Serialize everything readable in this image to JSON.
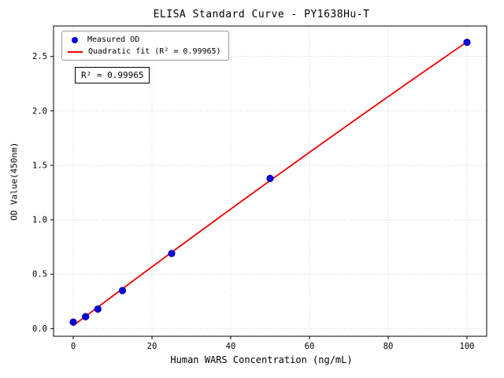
{
  "chart_data": {
    "type": "scatter",
    "title": "ELISA Standard Curve - PY1638Hu-T",
    "xlabel": "Human WARS Concentration (ng/mL)",
    "ylabel": "OD Value(450nm)",
    "x": [
      0,
      3.125,
      6.25,
      12.5,
      25,
      50,
      100
    ],
    "y": [
      0.06,
      0.11,
      0.18,
      0.35,
      0.69,
      1.38,
      2.63
    ],
    "series": [
      {
        "name": "Measured OD",
        "type": "scatter",
        "color": "#0000dd",
        "edge": "#0000a0"
      },
      {
        "name": "Quadratic fit (R² = 0.99965)",
        "type": "line",
        "color": "#ee0000"
      }
    ],
    "annotation": "R² = 0.99965",
    "xlim": [
      -5,
      105
    ],
    "ylim": [
      -0.07,
      2.78
    ],
    "xticks": [
      0,
      20,
      40,
      60,
      80,
      100
    ],
    "yticks": [
      0.0,
      0.5,
      1.0,
      1.5,
      2.0,
      2.5
    ],
    "grid": true,
    "grid_color": "#c9c9c9",
    "legend_position": "upper left"
  }
}
